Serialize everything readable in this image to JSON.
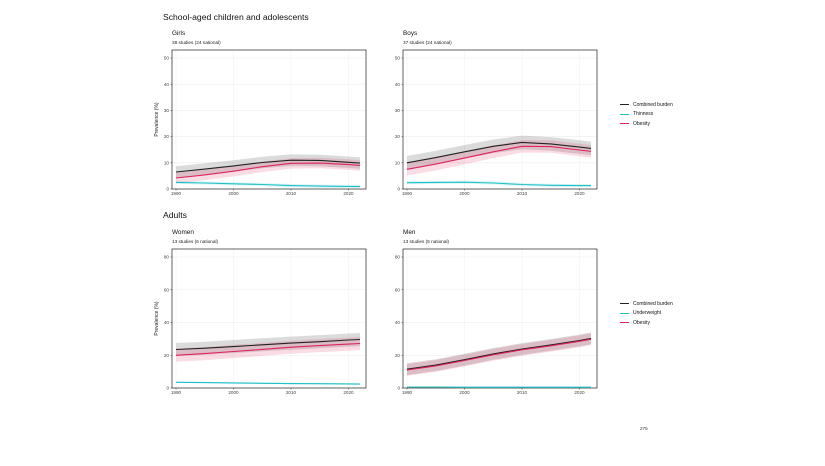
{
  "sections": [
    {
      "title": "School-aged children and adolescents"
    },
    {
      "title": "Adults"
    }
  ],
  "legends": [
    {
      "items": [
        {
          "label": "Combined burden",
          "color": "#222222"
        },
        {
          "label": "Thinness",
          "color": "#20c0c8"
        },
        {
          "label": "Obesity",
          "color": "#e0245e"
        }
      ]
    },
    {
      "items": [
        {
          "label": "Combined burden",
          "color": "#222222"
        },
        {
          "label": "Underweight",
          "color": "#20c0c8"
        },
        {
          "label": "Obesity",
          "color": "#e0245e"
        }
      ]
    }
  ],
  "page_number": "275",
  "chart_data": [
    {
      "type": "line",
      "title": "Girls",
      "subtitle": "38 studies (24 national)",
      "ylabel": "Prevalence (%)",
      "xlim": [
        1990,
        2022
      ],
      "ylim": [
        0,
        50
      ],
      "xticks": [
        1990,
        2000,
        2010,
        2020
      ],
      "yticks": [
        0,
        10,
        20,
        30,
        40,
        50
      ],
      "x": [
        1990,
        1995,
        2000,
        2005,
        2010,
        2015,
        2020,
        2022
      ],
      "series": [
        {
          "name": "Combined burden",
          "color": "#222222",
          "values": [
            6.5,
            7.6,
            8.8,
            10.1,
            11.0,
            10.9,
            10.2,
            9.9
          ],
          "ci": 2.2
        },
        {
          "name": "Thinness",
          "color": "#20c0c8",
          "values": [
            2.5,
            2.3,
            2.0,
            1.7,
            1.3,
            1.1,
            1.0,
            1.0
          ],
          "ci": 0.6
        },
        {
          "name": "Obesity",
          "color": "#e0245e",
          "values": [
            4.2,
            5.4,
            6.8,
            8.5,
            9.8,
            9.9,
            9.3,
            9.0
          ],
          "ci": 2.0
        }
      ]
    },
    {
      "type": "line",
      "title": "Boys",
      "subtitle": "37 studies (24 national)",
      "ylabel": "",
      "xlim": [
        1990,
        2022
      ],
      "ylim": [
        0,
        50
      ],
      "xticks": [
        1990,
        2000,
        2010,
        2020
      ],
      "yticks": [
        0,
        10,
        20,
        30,
        40,
        50
      ],
      "x": [
        1990,
        1995,
        2000,
        2005,
        2010,
        2015,
        2020,
        2022
      ],
      "series": [
        {
          "name": "Combined burden",
          "color": "#222222",
          "values": [
            10.0,
            12.0,
            14.2,
            16.3,
            17.8,
            17.2,
            16.0,
            15.5
          ],
          "ci": 2.6
        },
        {
          "name": "Thinness",
          "color": "#20c0c8",
          "values": [
            2.4,
            2.5,
            2.6,
            2.3,
            1.7,
            1.4,
            1.3,
            1.3
          ],
          "ci": 0.6
        },
        {
          "name": "Obesity",
          "color": "#e0245e",
          "values": [
            7.5,
            9.5,
            11.8,
            14.2,
            16.3,
            16.2,
            14.9,
            14.4
          ],
          "ci": 2.4
        }
      ]
    },
    {
      "type": "line",
      "title": "Women",
      "subtitle": "13 studies (6 national)",
      "ylabel": "Prevalence (%)",
      "xlim": [
        1990,
        2022
      ],
      "ylim": [
        0,
        80
      ],
      "xticks": [
        1990,
        2000,
        2010,
        2020
      ],
      "yticks": [
        0,
        20,
        40,
        60,
        80
      ],
      "x": [
        1990,
        1995,
        2000,
        2005,
        2010,
        2015,
        2020,
        2022
      ],
      "series": [
        {
          "name": "Combined burden",
          "color": "#222222",
          "values": [
            23.5,
            24.3,
            25.3,
            26.4,
            27.4,
            28.3,
            29.3,
            29.6
          ],
          "ci": 4.0
        },
        {
          "name": "Underweight",
          "color": "#20c0c8",
          "values": [
            3.5,
            3.3,
            3.1,
            2.9,
            2.7,
            2.6,
            2.5,
            2.4
          ],
          "ci": 0.5
        },
        {
          "name": "Obesity",
          "color": "#e0245e",
          "values": [
            20.0,
            21.0,
            22.3,
            23.6,
            24.9,
            25.9,
            26.8,
            27.2
          ],
          "ci": 4.0
        }
      ]
    },
    {
      "type": "line",
      "title": "Men",
      "subtitle": "13 studies (5 national)",
      "ylabel": "",
      "xlim": [
        1990,
        2022
      ],
      "ylim": [
        0,
        80
      ],
      "xticks": [
        1990,
        2000,
        2010,
        2020
      ],
      "yticks": [
        0,
        20,
        40,
        60,
        80
      ],
      "x": [
        1990,
        1995,
        2000,
        2005,
        2010,
        2015,
        2020,
        2022
      ],
      "series": [
        {
          "name": "Combined burden",
          "color": "#222222",
          "values": [
            11.5,
            14.0,
            17.3,
            20.8,
            23.8,
            26.3,
            29.0,
            30.3
          ],
          "ci": 3.6
        },
        {
          "name": "Underweight",
          "color": "#20c0c8",
          "values": [
            0.6,
            0.6,
            0.5,
            0.5,
            0.5,
            0.5,
            0.5,
            0.5
          ],
          "ci": 0.3
        },
        {
          "name": "Obesity",
          "color": "#e0245e",
          "values": [
            11.0,
            13.5,
            16.8,
            20.3,
            23.3,
            25.8,
            28.5,
            29.8
          ],
          "ci": 3.6
        }
      ]
    }
  ]
}
